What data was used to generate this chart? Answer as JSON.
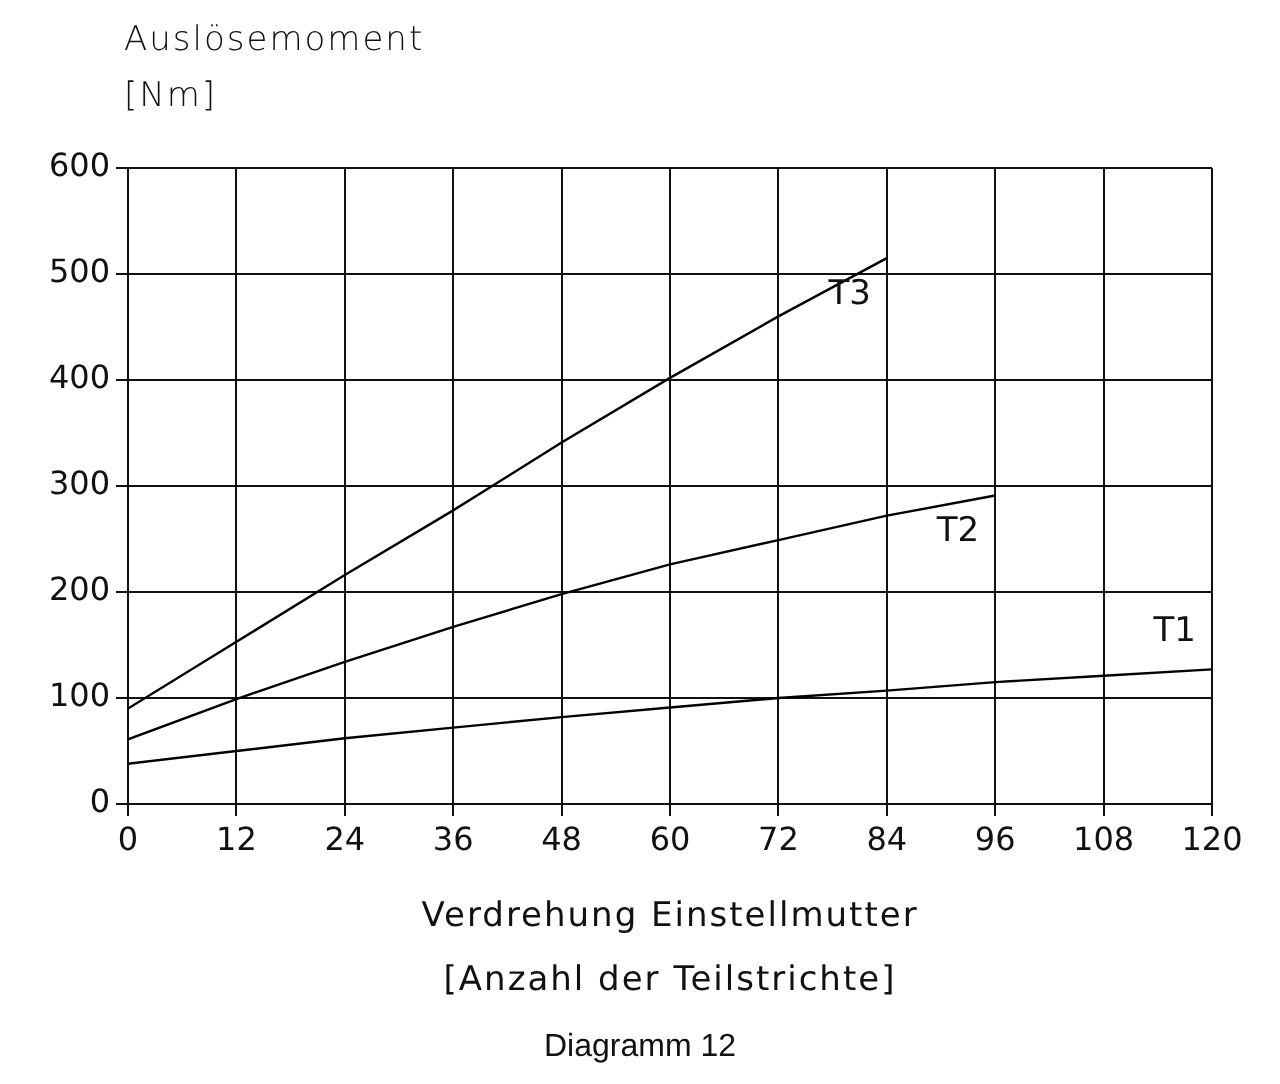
{
  "chart_data": {
    "type": "line",
    "ylabel": "Auslösemoment\n[Nm]",
    "xlabel": "Verdrehung Einstellmutter\n[Anzahl der Teilstrichte]",
    "annotations": [
      "Diagramm 12"
    ],
    "xlim": [
      0,
      120
    ],
    "xticks": [
      0,
      12,
      24,
      36,
      48,
      60,
      72,
      84,
      96,
      108,
      120
    ],
    "ylim": [
      0,
      600
    ],
    "yticks": [
      0,
      100,
      200,
      300,
      400,
      500,
      600
    ],
    "grid": true,
    "legend": false,
    "marker": "none",
    "line_style": "solid",
    "series": [
      {
        "name": "T1",
        "color": "#000000",
        "x": [
          0,
          12,
          24,
          36,
          48,
          60,
          72,
          84,
          96,
          108,
          120
        ],
        "values": [
          38,
          50,
          62,
          72,
          82,
          91,
          100,
          107,
          115,
          121,
          127
        ]
      },
      {
        "name": "T2",
        "color": "#000000",
        "x": [
          0,
          12,
          24,
          36,
          48,
          60,
          72,
          84,
          96
        ],
        "values": [
          61,
          99,
          134,
          167,
          198,
          226,
          249,
          272,
          291
        ]
      },
      {
        "name": "T3",
        "color": "#000000",
        "x": [
          0,
          12,
          24,
          36,
          48,
          60,
          72,
          84
        ],
        "values": [
          90,
          153,
          216,
          277,
          341,
          402,
          460,
          515
        ]
      }
    ]
  }
}
